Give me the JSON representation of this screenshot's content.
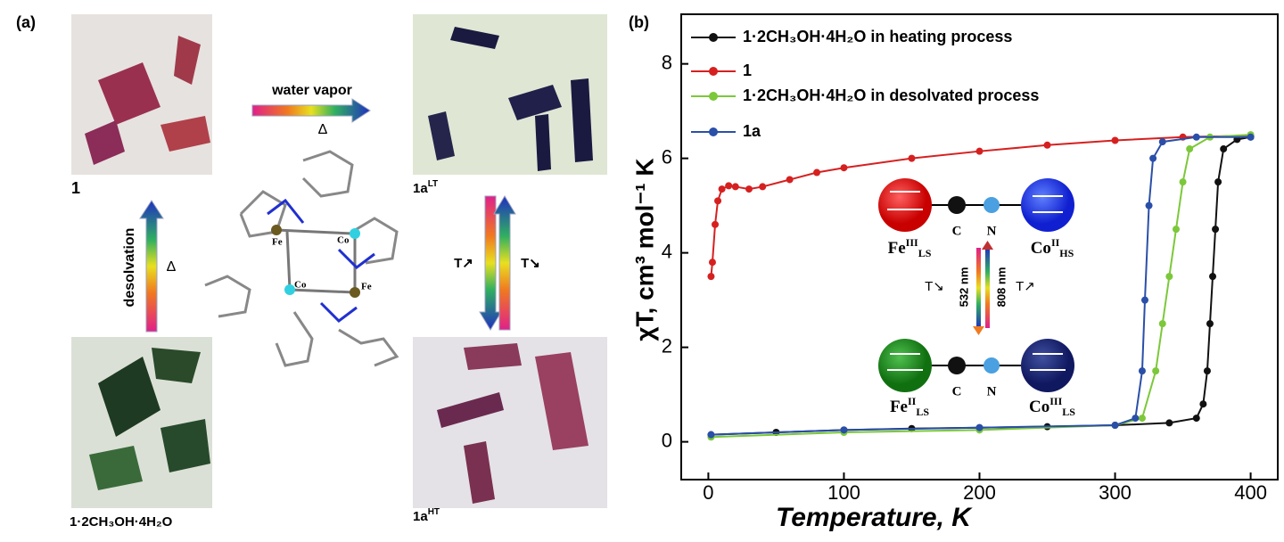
{
  "panel_a": {
    "label": "(a)",
    "photos": [
      {
        "base": "1",
        "sup": ""
      },
      {
        "base": "1a",
        "sup": "LT"
      },
      {
        "base": "1·2CH₃OH·4H₂O",
        "sup": ""
      },
      {
        "base": "1a",
        "sup": "HT"
      }
    ],
    "top_arrow": {
      "label": "water vapor",
      "sub": "Δ"
    },
    "left_arrow": {
      "label": "desolvation",
      "sub": "Δ"
    },
    "right_arrows": {
      "up": "T↗",
      "down": "T↘"
    },
    "atoms": [
      "Fe",
      "Co",
      "Co",
      "Fe"
    ]
  },
  "chart_data": {
    "type": "line",
    "panel_label": "(b)",
    "x_label": "Temperature, K",
    "y_label": "χT, cm³ mol⁻¹ K",
    "xlim": [
      -20,
      420
    ],
    "ylim": [
      -0.8,
      9.05
    ],
    "xticks": [
      0,
      100,
      200,
      300,
      400
    ],
    "yticks": [
      0,
      2,
      4,
      6,
      8
    ],
    "series": [
      {
        "name": "1·2CH₃OH·4H₂O in heating process",
        "color": "#111111",
        "x": [
          2,
          50,
          100,
          150,
          200,
          250,
          300,
          340,
          360,
          365,
          368,
          370,
          372,
          374,
          376,
          380,
          390,
          400
        ],
        "values": [
          0.15,
          0.2,
          0.25,
          0.28,
          0.3,
          0.32,
          0.35,
          0.4,
          0.5,
          0.8,
          1.5,
          2.5,
          3.5,
          4.5,
          5.5,
          6.2,
          6.4,
          6.45
        ]
      },
      {
        "name": "1",
        "color": "#d62020",
        "x": [
          2,
          3,
          5,
          7,
          10,
          15,
          20,
          30,
          40,
          60,
          80,
          100,
          150,
          200,
          250,
          300,
          350,
          400
        ],
        "values": [
          3.5,
          3.8,
          4.6,
          5.1,
          5.35,
          5.42,
          5.4,
          5.35,
          5.4,
          5.55,
          5.7,
          5.8,
          6.0,
          6.15,
          6.28,
          6.38,
          6.45,
          6.48
        ]
      },
      {
        "name": "1·2CH₃OH·4H₂O in desolvated process",
        "color": "#7cc83a",
        "x": [
          2,
          100,
          200,
          300,
          320,
          330,
          335,
          340,
          345,
          350,
          355,
          370,
          400
        ],
        "values": [
          0.1,
          0.2,
          0.25,
          0.35,
          0.5,
          1.5,
          2.5,
          3.5,
          4.5,
          5.5,
          6.2,
          6.45,
          6.5
        ]
      },
      {
        "name": "1a",
        "color": "#2a4fa8",
        "x": [
          2,
          100,
          200,
          300,
          315,
          320,
          322,
          325,
          328,
          335,
          360,
          400
        ],
        "values": [
          0.15,
          0.25,
          0.3,
          0.35,
          0.5,
          1.5,
          3,
          5,
          6,
          6.35,
          6.45,
          6.45
        ]
      }
    ],
    "inset": {
      "top": {
        "fe": {
          "base": "Fe",
          "sup": "III",
          "sub": "LS"
        },
        "co": {
          "base": "Co",
          "sup": "II",
          "sub": "HS"
        }
      },
      "bottom": {
        "fe": {
          "base": "Fe",
          "sup": "II",
          "sub": "LS"
        },
        "co": {
          "base": "Co",
          "sup": "III",
          "sub": "LS"
        }
      },
      "c": "C",
      "n": "N",
      "down_wave": "532 nm",
      "up_wave": "808 nm",
      "t_down": "T↘",
      "t_up": "T↗"
    }
  }
}
